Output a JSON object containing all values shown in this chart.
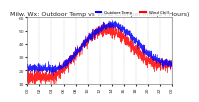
{
  "title": "Milw. Wx: Outdoor Temp vs Wind Chill per Min (24 Hours)",
  "bg_color": "#ffffff",
  "temp_color": "#0000ff",
  "windchill_color": "#ff0000",
  "ylim": [
    10,
    60
  ],
  "minutes": 1440,
  "legend_temp_label": "Outdoor Temp",
  "legend_wc_label": "Wind Chill",
  "yticks": [
    10,
    20,
    30,
    40,
    50,
    60
  ],
  "grid_color": "#aaaaaa",
  "title_fontsize": 4.5,
  "tick_fontsize": 3.2
}
